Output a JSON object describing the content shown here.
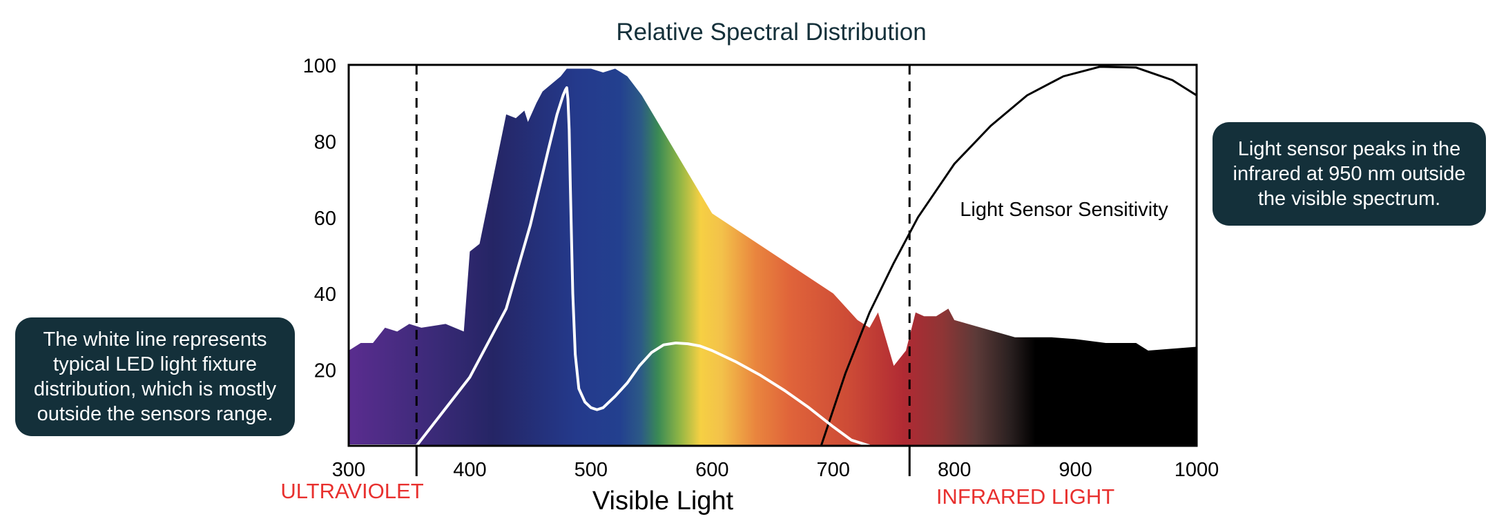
{
  "chart_data": {
    "type": "area",
    "title": "Relative Spectral Distribution",
    "xlabel": "Visible Light",
    "ylabel": "",
    "xlim": [
      300,
      1000
    ],
    "ylim": [
      0,
      100
    ],
    "x_ticks": [
      300,
      400,
      500,
      600,
      700,
      800,
      900,
      1000
    ],
    "y_ticks": [
      20,
      40,
      60,
      80,
      100
    ],
    "grid": false,
    "region_labels": {
      "uv": "ULTRAVIOLET",
      "ir": "INFRARED LIGHT"
    },
    "boundaries": [
      356,
      763
    ],
    "boundary_label_color": "#e8302e",
    "series": [
      {
        "style": "filled-spectrum",
        "x": [
          300,
          310,
          320,
          330,
          340,
          350,
          360,
          380,
          395,
          400,
          408,
          430,
          438,
          445,
          448,
          455,
          460,
          475,
          480,
          500,
          510,
          520,
          530,
          542,
          600,
          700,
          720,
          730,
          737,
          750,
          760,
          768,
          775,
          785,
          795,
          800,
          850,
          880,
          900,
          925,
          950,
          960,
          980,
          1000
        ],
        "y": [
          25,
          27,
          27,
          31,
          30,
          32,
          31,
          32,
          30,
          51,
          53,
          87,
          86,
          88,
          85,
          90,
          93,
          97,
          99,
          99,
          98,
          99,
          97,
          92,
          61,
          40,
          33,
          31,
          35,
          21,
          25,
          35,
          34,
          34,
          36,
          33,
          28.5,
          28.5,
          28,
          27,
          27,
          25,
          25.5,
          26
        ]
      },
      {
        "name": "LED fixture",
        "style": "white-line",
        "x": [
          300,
          356,
          400,
          430,
          450,
          465,
          472,
          477,
          479,
          480,
          481,
          482,
          483,
          485,
          487,
          490,
          495,
          500,
          505,
          510,
          520,
          530,
          540,
          550,
          560,
          570,
          580,
          590,
          600,
          620,
          640,
          660,
          680,
          700,
          715,
          730
        ],
        "y": [
          0,
          0,
          18,
          36,
          58,
          78,
          87,
          92,
          93.5,
          94,
          91,
          83,
          68,
          40,
          24,
          15,
          11.5,
          10,
          9.5,
          10,
          13,
          16.5,
          21,
          24.5,
          26.5,
          27,
          26.8,
          26.2,
          25,
          22,
          18.5,
          14.5,
          10,
          5,
          1.5,
          0
        ]
      },
      {
        "name": "Light Sensor Sensitivity",
        "style": "black-line",
        "x": [
          690,
          710,
          730,
          750,
          770,
          800,
          830,
          860,
          890,
          920,
          950,
          980,
          1000
        ],
        "y": [
          0,
          19,
          35,
          48,
          60,
          74,
          84,
          92,
          97,
          99.5,
          99.3,
          96,
          92
        ]
      }
    ]
  },
  "annotations": {
    "sensor_curve_label": "Light Sensor Sensitivity",
    "left_callout": [
      "The white line represents",
      "typical LED light fixture",
      "distribution, which is mostly",
      "outside the sensors range."
    ],
    "right_callout": [
      "Light sensor peaks in the",
      "infrared at 950 nm outside",
      "the visible spectrum."
    ],
    "callout_bg": "#14303a"
  }
}
